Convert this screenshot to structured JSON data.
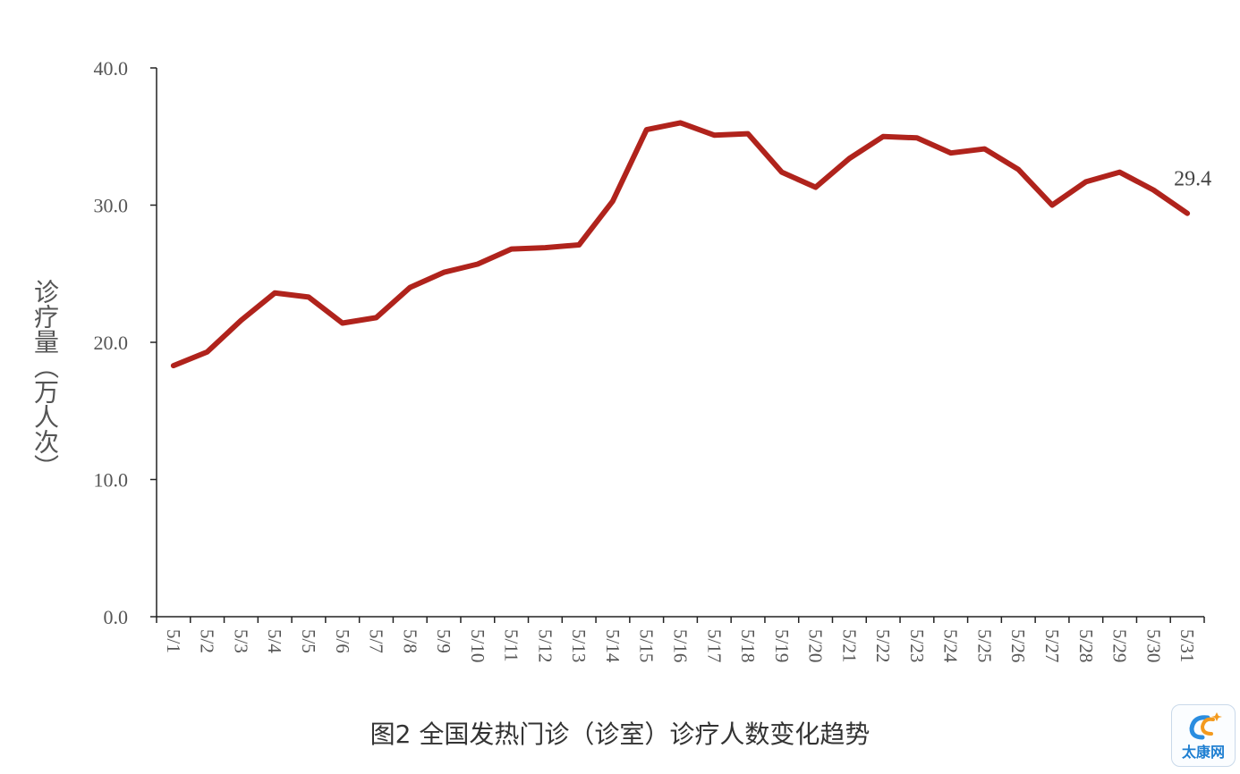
{
  "chart_data": {
    "type": "line",
    "title": "",
    "caption": "图2 全国发热门诊（诊室）诊疗人数变化趋势",
    "ylabel": "诊疗量（万人次）",
    "xlabel": "",
    "ylim": [
      0,
      40
    ],
    "yticks": [
      "0.0",
      "10.0",
      "20.0",
      "30.0",
      "40.0"
    ],
    "categories": [
      "5/1",
      "5/2",
      "5/3",
      "5/4",
      "5/5",
      "5/6",
      "5/7",
      "5/8",
      "5/9",
      "5/10",
      "5/11",
      "5/12",
      "5/13",
      "5/14",
      "5/15",
      "5/16",
      "5/17",
      "5/18",
      "5/19",
      "5/20",
      "5/21",
      "5/22",
      "5/23",
      "5/24",
      "5/25",
      "5/26",
      "5/27",
      "5/28",
      "5/29",
      "5/30",
      "5/31"
    ],
    "series": [
      {
        "color": "#b0231c",
        "values": [
          18.3,
          19.3,
          21.6,
          23.6,
          23.3,
          21.4,
          21.8,
          24.0,
          25.1,
          25.7,
          26.8,
          26.9,
          27.1,
          30.3,
          35.5,
          36.0,
          35.1,
          35.2,
          32.4,
          31.3,
          33.4,
          35.0,
          34.9,
          33.8,
          34.1,
          32.6,
          30.0,
          31.7,
          32.4,
          31.1,
          29.4
        ]
      }
    ],
    "annotations": [
      {
        "category": "5/31",
        "text": "29.4"
      }
    ],
    "grid": false,
    "legend": "none"
  },
  "watermark": {
    "text": "太康网",
    "icon": "tc-logo-icon"
  }
}
